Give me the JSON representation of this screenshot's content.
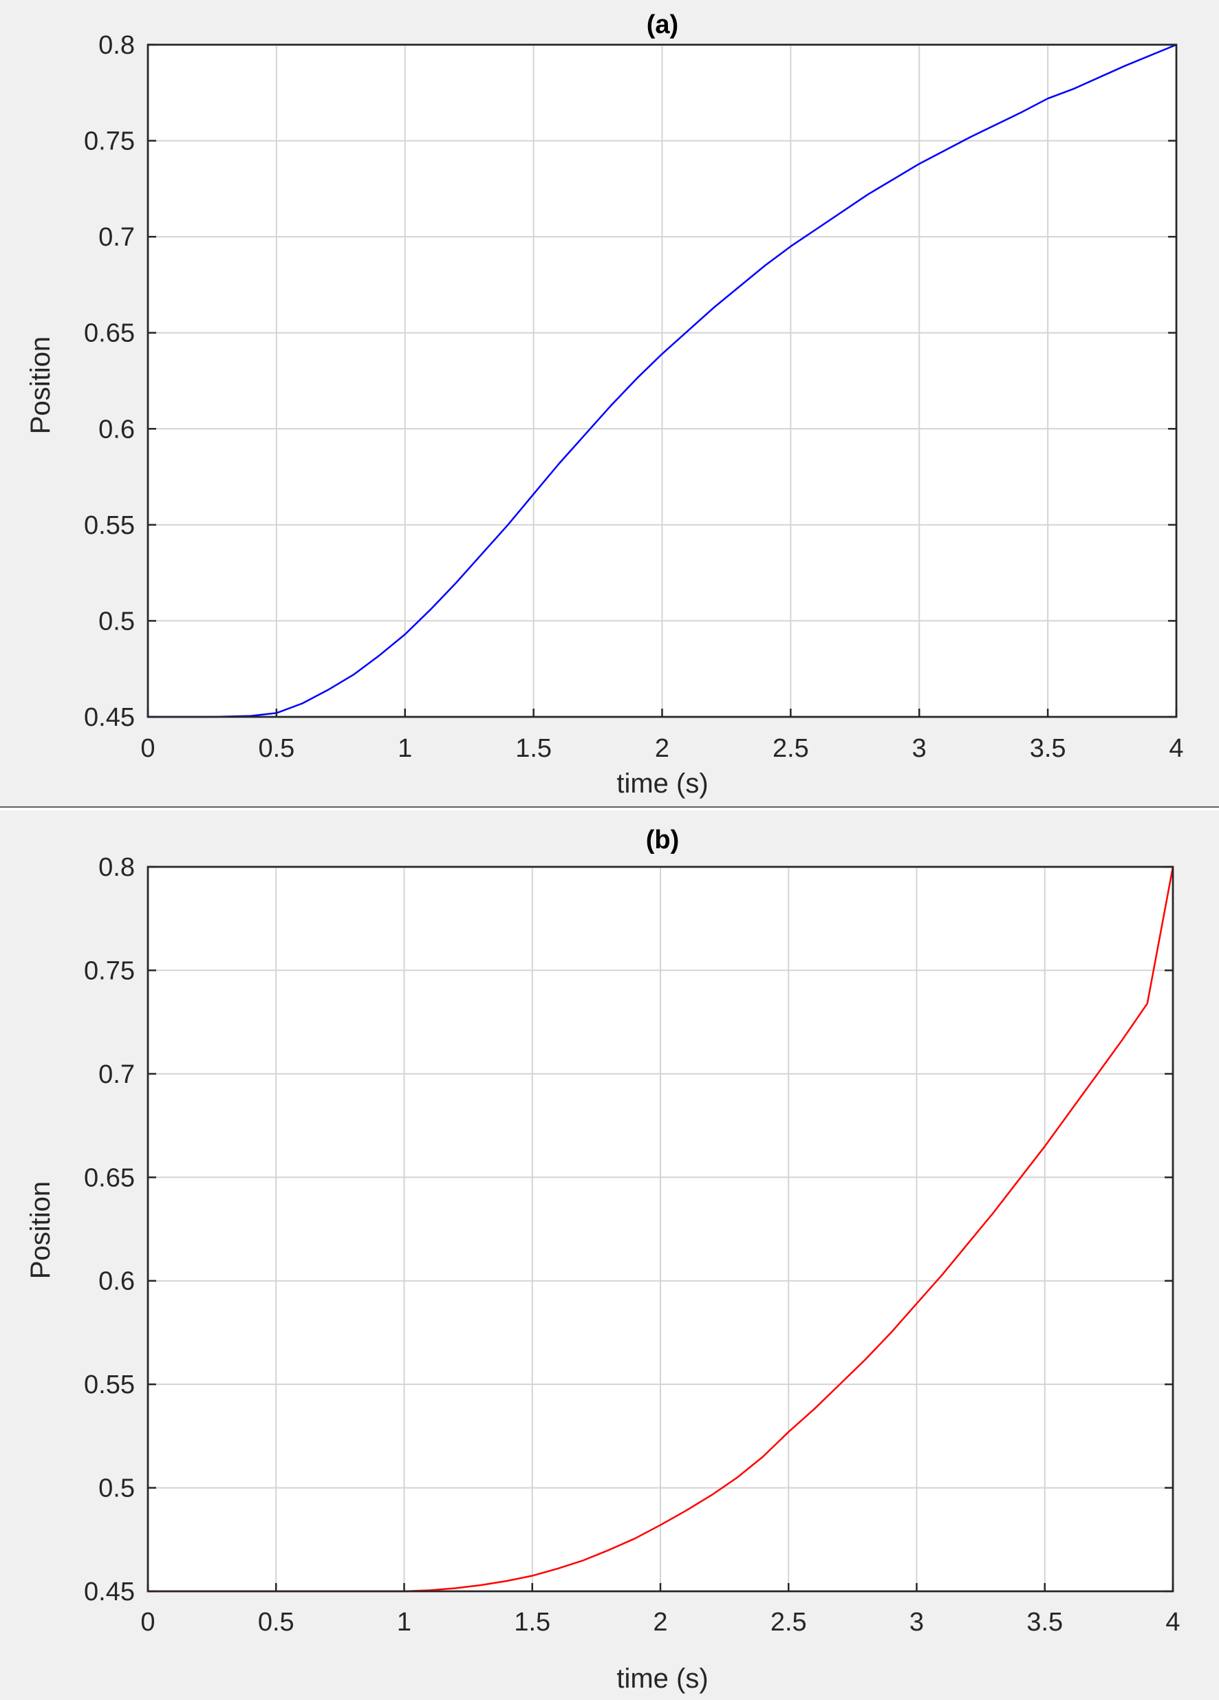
{
  "chart_data": [
    {
      "type": "line",
      "title": "(a)",
      "xlabel": "time (s)",
      "ylabel": "Position",
      "xlim": [
        0,
        4
      ],
      "ylim": [
        0.45,
        0.8
      ],
      "xticks": [
        0,
        0.5,
        1,
        1.5,
        2,
        2.5,
        3,
        3.5,
        4
      ],
      "xtick_labels": [
        "0",
        "0.5",
        "1",
        "1.5",
        "2",
        "2.5",
        "3",
        "3.5",
        "4"
      ],
      "yticks": [
        0.45,
        0.5,
        0.55,
        0.6,
        0.65,
        0.7,
        0.75,
        0.8
      ],
      "ytick_labels": [
        "0.45",
        "0.5",
        "0.55",
        "0.6",
        "0.65",
        "0.7",
        "0.75",
        "0.8"
      ],
      "grid": true,
      "color": "#0000ff",
      "x": [
        0,
        0.25,
        0.4,
        0.5,
        0.6,
        0.7,
        0.8,
        0.9,
        1.0,
        1.1,
        1.2,
        1.3,
        1.4,
        1.5,
        1.6,
        1.7,
        1.8,
        1.9,
        2.0,
        2.2,
        2.4,
        2.5,
        2.6,
        2.8,
        3.0,
        3.2,
        3.4,
        3.5,
        3.6,
        3.8,
        4.0
      ],
      "y": [
        0.45,
        0.45,
        0.4505,
        0.452,
        0.457,
        0.464,
        0.472,
        0.482,
        0.493,
        0.506,
        0.52,
        0.535,
        0.55,
        0.566,
        0.582,
        0.597,
        0.612,
        0.626,
        0.639,
        0.663,
        0.685,
        0.695,
        0.704,
        0.722,
        0.738,
        0.752,
        0.765,
        0.772,
        0.777,
        0.789,
        0.8
      ]
    },
    {
      "type": "line",
      "title": "(b)",
      "xlabel": "time (s)",
      "ylabel": "Position",
      "xlim": [
        0,
        4
      ],
      "ylim": [
        0.45,
        0.8
      ],
      "xticks": [
        0,
        0.5,
        1,
        1.5,
        2,
        2.5,
        3,
        3.5,
        4
      ],
      "xtick_labels": [
        "0",
        "0.5",
        "1",
        "1.5",
        "2",
        "2.5",
        "3",
        "3.5",
        "4"
      ],
      "yticks": [
        0.45,
        0.5,
        0.55,
        0.6,
        0.65,
        0.7,
        0.75,
        0.8
      ],
      "ytick_labels": [
        "0.45",
        "0.5",
        "0.55",
        "0.6",
        "0.65",
        "0.7",
        "0.75",
        "0.8"
      ],
      "grid": true,
      "color": "#ff0000",
      "x": [
        0,
        0.5,
        1.0,
        1.1,
        1.2,
        1.3,
        1.4,
        1.5,
        1.6,
        1.7,
        1.8,
        1.9,
        2.0,
        2.1,
        2.2,
        2.3,
        2.4,
        2.5,
        2.6,
        2.7,
        2.8,
        2.9,
        3.0,
        3.1,
        3.2,
        3.3,
        3.4,
        3.5,
        3.6,
        3.7,
        3.8,
        3.9,
        4.0
      ],
      "y": [
        0.45,
        0.45,
        0.45,
        0.4505,
        0.4515,
        0.453,
        0.455,
        0.4575,
        0.461,
        0.465,
        0.47,
        0.4755,
        0.482,
        0.489,
        0.4965,
        0.505,
        0.515,
        0.527,
        0.538,
        0.55,
        0.562,
        0.575,
        0.589,
        0.603,
        0.618,
        0.633,
        0.649,
        0.665,
        0.682,
        0.699,
        0.716,
        0.734,
        0.8
      ]
    }
  ]
}
